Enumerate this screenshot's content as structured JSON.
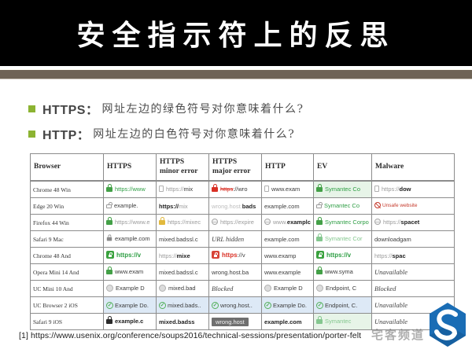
{
  "title": "安全指示符上的反思",
  "bullets": [
    {
      "label": "HTTPS：",
      "text": "网址左边的绿色符号对你意味着什么?"
    },
    {
      "label": "HTTP：",
      "text": "网址左边的白色符号对你意味着什么?"
    }
  ],
  "table": {
    "columns": [
      {
        "label": "Browser",
        "sub": ""
      },
      {
        "label": "HTTPS",
        "sub": ""
      },
      {
        "label": "HTTPS",
        "sub": "minor error"
      },
      {
        "label": "HTTPS",
        "sub": "major error"
      },
      {
        "label": "HTTP",
        "sub": ""
      },
      {
        "label": "EV",
        "sub": ""
      },
      {
        "label": "Malware",
        "sub": ""
      }
    ],
    "rows": [
      {
        "browser": "Chrome 48 Win",
        "cells": [
          {
            "icon": "lock green",
            "parts": [
              {
                "t": "https://www",
                "s": "green"
              }
            ]
          },
          {
            "icon": "page",
            "parts": [
              {
                "t": "https://",
                "s": "gray"
              },
              {
                "t": "mix",
                "s": "dark"
              }
            ]
          },
          {
            "icon": "lock red",
            "parts": [
              {
                "t": "https",
                "s": "red-strike"
              },
              {
                "t": "://wro",
                "s": "dark"
              }
            ]
          },
          {
            "icon": "page",
            "parts": [
              {
                "t": "www.exam",
                "s": "dark"
              }
            ]
          },
          {
            "icon": "lock green",
            "bg": "green",
            "parts": [
              {
                "t": "Symantec Co",
                "s": "green"
              }
            ]
          },
          {
            "icon": "page",
            "parts": [
              {
                "t": "https://",
                "s": "gray"
              },
              {
                "t": "dow",
                "s": "dark-bold"
              }
            ]
          }
        ]
      },
      {
        "browser": "Edge 20 Win",
        "cells": [
          {
            "icon": "lock outline",
            "parts": [
              {
                "t": "example.",
                "s": "dark"
              }
            ]
          },
          {
            "parts": [
              {
                "t": "https://",
                "s": "dark-bold"
              },
              {
                "t": "mix",
                "s": "gray"
              }
            ]
          },
          {
            "parts": [
              {
                "t": "wrong.host.",
                "s": "light-gray"
              },
              {
                "t": "bads",
                "s": "dark-bold"
              }
            ]
          },
          {
            "parts": [
              {
                "t": "example.com",
                "s": "dark"
              }
            ]
          },
          {
            "icon": "lock outline",
            "parts": [
              {
                "t": "Symantec Co",
                "s": "green"
              }
            ]
          },
          {
            "icon": "alert",
            "parts": [
              {
                "t": "Unsafe website",
                "s": "red-small"
              }
            ]
          }
        ]
      },
      {
        "browser": "Firefox 44 Win",
        "cells": [
          {
            "icon": "lock green",
            "parts": [
              {
                "t": "https://www.e",
                "s": "gray"
              }
            ]
          },
          {
            "icon": "lock yellow",
            "parts": [
              {
                "t": "https://mixec",
                "s": "gray"
              }
            ]
          },
          {
            "icon": "globe",
            "parts": [
              {
                "t": "https://expire",
                "s": "gray"
              }
            ]
          },
          {
            "icon": "globe",
            "parts": [
              {
                "t": "www.",
                "s": "gray"
              },
              {
                "t": "examplc",
                "s": "dark-bold"
              }
            ]
          },
          {
            "icon": "lock green",
            "parts": [
              {
                "t": "Symantec Corpo",
                "s": "green"
              }
            ]
          },
          {
            "icon": "globe",
            "parts": [
              {
                "t": "https://",
                "s": "gray"
              },
              {
                "t": "spacet",
                "s": "dark-bold"
              }
            ]
          }
        ]
      },
      {
        "browser": "Safari 9 Mac",
        "cells": [
          {
            "icon": "lock small",
            "parts": [
              {
                "t": "example.com",
                "s": "dark"
              }
            ]
          },
          {
            "parts": [
              {
                "t": "mixed.badssl.c",
                "s": "dark"
              }
            ]
          },
          {
            "parts": [
              {
                "t": "URL hidden",
                "s": "italic"
              }
            ]
          },
          {
            "parts": [
              {
                "t": "example.com",
                "s": "dark"
              }
            ]
          },
          {
            "icon": "lock green-light",
            "parts": [
              {
                "t": "Symantec Cor",
                "s": "green-light"
              }
            ]
          },
          {
            "parts": [
              {
                "t": "downloadgam",
                "s": "dark"
              }
            ]
          }
        ]
      },
      {
        "browser": "Chrome 48 And",
        "cells": [
          {
            "icon": "badge green",
            "parts": [
              {
                "t": "https://v",
                "s": "green-bold"
              }
            ]
          },
          {
            "parts": [
              {
                "t": "https://",
                "s": "gray"
              },
              {
                "t": "mixe",
                "s": "dark-bold"
              }
            ]
          },
          {
            "icon": "badge red",
            "parts": [
              {
                "t": "https",
                "s": "red-bold"
              },
              {
                "t": "://v",
                "s": "dark"
              }
            ]
          },
          {
            "parts": [
              {
                "t": "www.examp",
                "s": "dark"
              }
            ]
          },
          {
            "icon": "badge green",
            "parts": [
              {
                "t": "https://v",
                "s": "green-bold"
              }
            ]
          },
          {
            "parts": [
              {
                "t": "https://",
                "s": "gray"
              },
              {
                "t": "spac",
                "s": "dark-bold"
              }
            ]
          }
        ]
      },
      {
        "browser": "Opera Mini 14 And",
        "cells": [
          {
            "icon": "lock green",
            "parts": [
              {
                "t": "www.exam",
                "s": "dark"
              }
            ]
          },
          {
            "parts": [
              {
                "t": "mixed.badssl.c",
                "s": "dark"
              }
            ]
          },
          {
            "parts": [
              {
                "t": "wrong.host.ba",
                "s": "dark"
              }
            ]
          },
          {
            "parts": [
              {
                "t": "www.example",
                "s": "dark"
              }
            ]
          },
          {
            "icon": "lock green",
            "parts": [
              {
                "t": "www.syma",
                "s": "dark"
              }
            ]
          },
          {
            "parts": [
              {
                "t": "Unavailable",
                "s": "italic"
              }
            ]
          }
        ]
      },
      {
        "browser": "UC Mini 10 And",
        "cells": [
          {
            "icon": "circle",
            "parts": [
              {
                "t": "Example D",
                "s": "dark"
              }
            ]
          },
          {
            "icon": "circle",
            "parts": [
              {
                "t": "mixed.bad",
                "s": "dark"
              }
            ]
          },
          {
            "parts": [
              {
                "t": "Blocked",
                "s": "italic"
              }
            ]
          },
          {
            "icon": "circle",
            "parts": [
              {
                "t": "Example D",
                "s": "dark"
              }
            ]
          },
          {
            "icon": "circle",
            "parts": [
              {
                "t": "Endpoint, C",
                "s": "dark"
              }
            ]
          },
          {
            "parts": [
              {
                "t": "Blocked",
                "s": "italic"
              }
            ]
          }
        ]
      },
      {
        "browser": "UC Browser 2 iOS",
        "cells": [
          {
            "icon": "check",
            "bg": "blue",
            "parts": [
              {
                "t": "Example Do.",
                "s": "dark"
              }
            ]
          },
          {
            "icon": "check",
            "bg": "blue",
            "parts": [
              {
                "t": "mixed.bads..",
                "s": "dark"
              }
            ]
          },
          {
            "icon": "check",
            "bg": "blue",
            "parts": [
              {
                "t": "wrong.host..",
                "s": "dark"
              }
            ]
          },
          {
            "icon": "check",
            "bg": "blue",
            "parts": [
              {
                "t": "Example Do.",
                "s": "dark"
              }
            ]
          },
          {
            "icon": "check",
            "bg": "blue",
            "parts": [
              {
                "t": "Endpoint, C.",
                "s": "dark"
              }
            ]
          },
          {
            "parts": [
              {
                "t": "Unavailable",
                "s": "italic"
              }
            ]
          }
        ]
      },
      {
        "browser": "Safari 9 iOS",
        "cells": [
          {
            "icon": "lock dark",
            "parts": [
              {
                "t": "example.c",
                "s": "dark-bold"
              }
            ]
          },
          {
            "parts": [
              {
                "t": "mixed.badss",
                "s": "dark-bold"
              }
            ]
          },
          {
            "hl": "dark",
            "parts": [
              {
                "t": "wrong.host",
                "s": "light"
              }
            ]
          },
          {
            "parts": [
              {
                "t": "example.com",
                "s": "dark-bold"
              }
            ]
          },
          {
            "icon": "lock green-light",
            "bg": "green",
            "parts": [
              {
                "t": "Symantec",
                "s": "green-light"
              }
            ]
          },
          {
            "parts": [
              {
                "t": "Unavailable",
                "s": "italic"
              }
            ]
          }
        ]
      }
    ]
  },
  "footnote": "[1] https://www.usenix.org/conference/soups2016/technical-sessions/presentation/porter-felt",
  "watermark": {
    "text": "宅客频道"
  },
  "colors": {
    "accent_green": "#8cb332",
    "link_green": "#2e9e44",
    "alert_red": "#d93025",
    "band_brown": "#6e6355",
    "logo_blue": "#1a6db5"
  }
}
